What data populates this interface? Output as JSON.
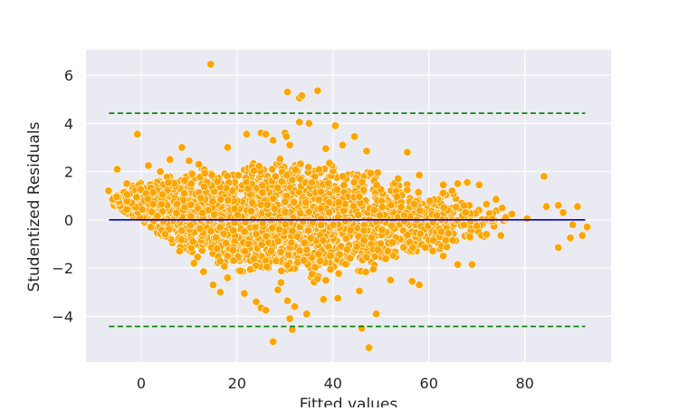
{
  "chart_data": {
    "type": "scatter",
    "title": "",
    "xlabel": "Fitted values",
    "ylabel": "Studentized Residuals",
    "xlim": [
      -11.5,
      98
    ],
    "ylim": [
      -5.9,
      7.05
    ],
    "x_ticks": [
      0,
      20,
      40,
      60,
      80
    ],
    "y_ticks": [
      -4,
      -2,
      0,
      2,
      4,
      6
    ],
    "grid": true,
    "legend": "none",
    "colors": {
      "background": "#EAEAF2",
      "grid": "#FFFFFF",
      "points": "#FFA500",
      "point_edge": "#FFFFFF",
      "zero_line": "#0000CD",
      "threshold_lines": "#008000"
    },
    "reference_lines": [
      {
        "y": 0,
        "x_range": [
          -6.7,
          92.6
        ],
        "style": "solid",
        "color": "#0000CD"
      },
      {
        "y": 4.42,
        "x_range": [
          -6.7,
          92.6
        ],
        "style": "dashed",
        "color": "#008000"
      },
      {
        "y": -4.42,
        "x_range": [
          -6.7,
          92.6
        ],
        "style": "dashed",
        "color": "#008000"
      }
    ],
    "series": [
      {
        "points": [
          [
            14.5,
            6.45
          ],
          [
            30.5,
            5.3
          ],
          [
            33.0,
            5.05
          ],
          [
            33.5,
            5.15
          ],
          [
            36.8,
            5.35
          ],
          [
            -0.8,
            3.55
          ],
          [
            8.5,
            3.0
          ],
          [
            22.0,
            3.55
          ],
          [
            25.0,
            3.6
          ],
          [
            26.0,
            3.55
          ],
          [
            30.0,
            3.6
          ],
          [
            30.3,
            3.45
          ],
          [
            33.0,
            4.05
          ],
          [
            35.0,
            4.0
          ],
          [
            40.5,
            3.9
          ],
          [
            44.5,
            3.45
          ],
          [
            18.0,
            3.0
          ],
          [
            27.5,
            3.3
          ],
          [
            31.0,
            3.1
          ],
          [
            38.5,
            2.95
          ],
          [
            42.0,
            3.1
          ],
          [
            47.0,
            2.85
          ],
          [
            55.5,
            2.8
          ],
          [
            -6.8,
            1.2
          ],
          [
            -5.0,
            2.1
          ],
          [
            -3.0,
            1.5
          ],
          [
            1.5,
            2.25
          ],
          [
            4.0,
            2.0
          ],
          [
            6.0,
            2.5
          ],
          [
            10.0,
            2.45
          ],
          [
            12.0,
            2.3
          ],
          [
            58.0,
            1.85
          ],
          [
            63.0,
            1.45
          ],
          [
            66.0,
            1.5
          ],
          [
            68.0,
            1.55
          ],
          [
            70.5,
            1.45
          ],
          [
            72.0,
            0.65
          ],
          [
            74.0,
            0.85
          ],
          [
            76.0,
            0.1
          ],
          [
            80.5,
            0.05
          ],
          [
            84.0,
            1.8
          ],
          [
            84.5,
            0.55
          ],
          [
            87.0,
            0.6
          ],
          [
            88.0,
            0.3
          ],
          [
            90.0,
            -0.2
          ],
          [
            91.0,
            0.55
          ],
          [
            92.0,
            -0.65
          ],
          [
            93.0,
            -0.3
          ],
          [
            87.0,
            -1.15
          ],
          [
            89.5,
            -0.75
          ],
          [
            2.0,
            -0.3
          ],
          [
            5.0,
            -0.6
          ],
          [
            8.0,
            -1.3
          ],
          [
            11.0,
            -1.8
          ],
          [
            13.0,
            -2.15
          ],
          [
            15.0,
            -2.7
          ],
          [
            16.5,
            -3.0
          ],
          [
            18.0,
            -2.4
          ],
          [
            21.5,
            -3.05
          ],
          [
            24.0,
            -3.4
          ],
          [
            25.0,
            -3.65
          ],
          [
            26.0,
            -3.75
          ],
          [
            28.5,
            -2.9
          ],
          [
            30.5,
            -3.35
          ],
          [
            31.0,
            -4.1
          ],
          [
            32.0,
            -3.6
          ],
          [
            34.5,
            -3.9
          ],
          [
            38.0,
            -3.3
          ],
          [
            41.0,
            -3.25
          ],
          [
            45.5,
            -2.95
          ],
          [
            31.5,
            -4.55
          ],
          [
            27.5,
            -5.05
          ],
          [
            46.0,
            -4.5
          ],
          [
            47.5,
            -5.3
          ],
          [
            49.0,
            -3.9
          ],
          [
            52.0,
            -2.5
          ],
          [
            56.5,
            -2.55
          ],
          [
            58.0,
            -2.7
          ],
          [
            63.0,
            -1.5
          ],
          [
            66.0,
            -1.85
          ],
          [
            69.0,
            -1.85
          ],
          [
            72.0,
            -0.6
          ],
          [
            75.0,
            -0.65
          ],
          [
            65.0,
            -0.85
          ],
          [
            70.0,
            -0.25
          ]
        ],
        "bulk": {
          "note": "dense cloud of several thousand points",
          "x_range": [
            -6,
            78
          ],
          "upper_envelope": [
            [
              -6,
              1.0
            ],
            [
              0,
              1.6
            ],
            [
              10,
              2.2
            ],
            [
              20,
              2.5
            ],
            [
              30,
              2.7
            ],
            [
              40,
              2.6
            ],
            [
              50,
              2.2
            ],
            [
              60,
              1.5
            ],
            [
              70,
              1.0
            ],
            [
              78,
              0.5
            ]
          ],
          "lower_envelope": [
            [
              -6,
              0.6
            ],
            [
              0,
              -0.2
            ],
            [
              10,
              -1.7
            ],
            [
              20,
              -2.4
            ],
            [
              30,
              -2.7
            ],
            [
              40,
              -2.6
            ],
            [
              50,
              -2.2
            ],
            [
              60,
              -1.5
            ],
            [
              70,
              -1.0
            ],
            [
              78,
              -0.5
            ]
          ]
        }
      }
    ]
  }
}
